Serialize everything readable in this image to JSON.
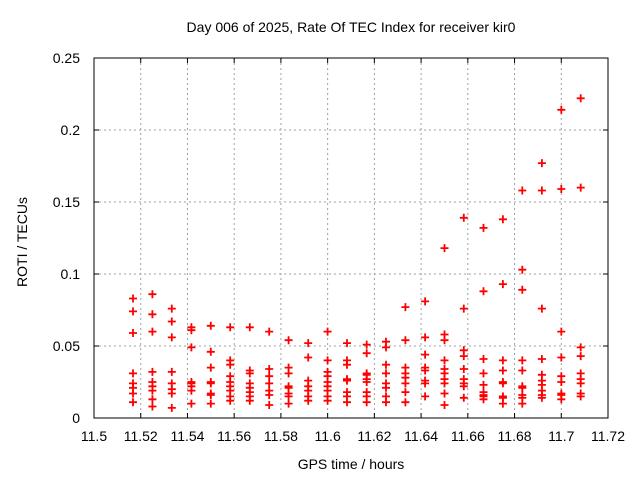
{
  "chart_data": {
    "type": "scatter",
    "title": "Day 006 of 2025, Rate Of TEC Index for receiver kir0",
    "xlabel": "GPS time / hours",
    "ylabel": "ROTI / TECUs",
    "xlim": [
      11.5,
      11.72
    ],
    "ylim": [
      0,
      0.25
    ],
    "x_ticks": [
      "11.5",
      "11.52",
      "11.54",
      "11.56",
      "11.58",
      "11.6",
      "11.62",
      "11.64",
      "11.66",
      "11.68",
      "11.7",
      "11.72"
    ],
    "y_ticks": [
      "0",
      "0.05",
      "0.1",
      "0.15",
      "0.2",
      "0.25"
    ],
    "grid": true,
    "legend": "none",
    "marker": {
      "symbol": "plus",
      "color": "#ff0000"
    },
    "colors": {
      "marker": "#ff0000",
      "grid": "#a0a0a0",
      "border": "#000000",
      "text": "#000000",
      "background": "#ffffff"
    },
    "series": [
      {
        "name": "ROTI kir0",
        "columns": [
          {
            "t": 11.5167,
            "values": [
              0.083,
              0.074,
              0.059,
              0.031,
              0.024,
              0.021,
              0.017,
              0.011
            ]
          },
          {
            "t": 11.525,
            "values": [
              0.086,
              0.072,
              0.06,
              0.032,
              0.025,
              0.022,
              0.019,
              0.013,
              0.008
            ]
          },
          {
            "t": 11.5333,
            "values": [
              0.076,
              0.067,
              0.056,
              0.032,
              0.024,
              0.02,
              0.017,
              0.007
            ]
          },
          {
            "t": 11.5417,
            "values": [
              0.063,
              0.061,
              0.049,
              0.025,
              0.024,
              0.022,
              0.019,
              0.01
            ]
          },
          {
            "t": 11.55,
            "values": [
              0.064,
              0.046,
              0.035,
              0.025,
              0.024,
              0.017,
              0.016,
              0.01
            ]
          },
          {
            "t": 11.5583,
            "values": [
              0.063,
              0.04,
              0.037,
              0.029,
              0.025,
              0.022,
              0.019,
              0.015,
              0.012
            ]
          },
          {
            "t": 11.5667,
            "values": [
              0.063,
              0.033,
              0.031,
              0.024,
              0.021,
              0.018,
              0.015,
              0.012
            ]
          },
          {
            "t": 11.575,
            "values": [
              0.06,
              0.034,
              0.029,
              0.024,
              0.019,
              0.016,
              0.009
            ]
          },
          {
            "t": 11.5833,
            "values": [
              0.054,
              0.035,
              0.031,
              0.022,
              0.021,
              0.017,
              0.015,
              0.01
            ]
          },
          {
            "t": 11.5917,
            "values": [
              0.052,
              0.042,
              0.026,
              0.022,
              0.019,
              0.015,
              0.012
            ]
          },
          {
            "t": 11.6,
            "values": [
              0.06,
              0.04,
              0.032,
              0.029,
              0.025,
              0.022,
              0.019,
              0.015,
              0.012
            ]
          },
          {
            "t": 11.6083,
            "values": [
              0.052,
              0.04,
              0.037,
              0.027,
              0.026,
              0.018,
              0.015,
              0.011
            ]
          },
          {
            "t": 11.6167,
            "values": [
              0.051,
              0.045,
              0.031,
              0.03,
              0.027,
              0.025,
              0.018,
              0.015,
              0.011
            ]
          },
          {
            "t": 11.625,
            "values": [
              0.053,
              0.049,
              0.037,
              0.031,
              0.024,
              0.021,
              0.015,
              0.011
            ]
          },
          {
            "t": 11.6333,
            "values": [
              0.077,
              0.054,
              0.035,
              0.031,
              0.028,
              0.024,
              0.018,
              0.011
            ]
          },
          {
            "t": 11.6417,
            "values": [
              0.081,
              0.056,
              0.044,
              0.035,
              0.033,
              0.026,
              0.024,
              0.015
            ]
          },
          {
            "t": 11.65,
            "values": [
              0.118,
              0.058,
              0.054,
              0.04,
              0.034,
              0.031,
              0.027,
              0.024,
              0.017,
              0.009
            ]
          },
          {
            "t": 11.6583,
            "values": [
              0.139,
              0.076,
              0.047,
              0.043,
              0.034,
              0.027,
              0.024,
              0.022,
              0.014
            ]
          },
          {
            "t": 11.6667,
            "values": [
              0.132,
              0.088,
              0.041,
              0.031,
              0.023,
              0.018,
              0.016,
              0.015,
              0.013
            ]
          },
          {
            "t": 11.675,
            "values": [
              0.138,
              0.093,
              0.04,
              0.033,
              0.025,
              0.024,
              0.015,
              0.014,
              0.01
            ]
          },
          {
            "t": 11.6833,
            "values": [
              0.158,
              0.103,
              0.089,
              0.04,
              0.033,
              0.022,
              0.021,
              0.016,
              0.014,
              0.01
            ]
          },
          {
            "t": 11.6917,
            "values": [
              0.177,
              0.158,
              0.076,
              0.041,
              0.03,
              0.026,
              0.023,
              0.019,
              0.016,
              0.014
            ]
          },
          {
            "t": 11.7,
            "values": [
              0.214,
              0.159,
              0.06,
              0.042,
              0.029,
              0.025,
              0.017,
              0.016,
              0.013
            ]
          },
          {
            "t": 11.7083,
            "values": [
              0.222,
              0.16,
              0.049,
              0.043,
              0.031,
              0.027,
              0.024,
              0.017,
              0.015
            ]
          }
        ]
      }
    ]
  }
}
